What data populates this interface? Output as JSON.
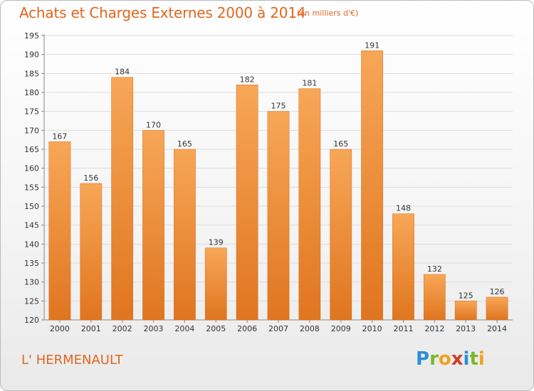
{
  "header": {
    "title": "Achats et Charges Externes 2000 à 2014",
    "subtitle": "(en milliers d'€)"
  },
  "footer": {
    "place": "L' HERMENAULT",
    "logo_letters": [
      {
        "ch": "P",
        "color": "#2a8fd6"
      },
      {
        "ch": "r",
        "color": "#7ab829"
      },
      {
        "ch": "o",
        "color": "#f2a11f"
      },
      {
        "ch": "x",
        "color": "#d63a2a"
      },
      {
        "ch": "i",
        "color": "#2a8fd6"
      },
      {
        "ch": "t",
        "color": "#7ab829"
      },
      {
        "ch": "i",
        "color": "#f2a11f"
      }
    ]
  },
  "chart_data": {
    "type": "bar",
    "title": "Achats et Charges Externes 2000 à 2014",
    "subtitle": "(en milliers d'€)",
    "xlabel": "",
    "ylabel": "",
    "categories": [
      "2000",
      "2001",
      "2002",
      "2003",
      "2004",
      "2005",
      "2006",
      "2007",
      "2008",
      "2009",
      "2010",
      "2011",
      "2012",
      "2013",
      "2014"
    ],
    "values": [
      167,
      156,
      184,
      170,
      165,
      139,
      182,
      175,
      181,
      165,
      191,
      148,
      132,
      125,
      126
    ],
    "ylim": [
      120,
      195
    ],
    "yticks": [
      120,
      125,
      130,
      135,
      140,
      145,
      150,
      155,
      160,
      165,
      170,
      175,
      180,
      185,
      190,
      195
    ],
    "grid": true,
    "bar_color": "#e8832f",
    "bar_color_light": "#f7a757",
    "text_color": "#e0661f"
  }
}
